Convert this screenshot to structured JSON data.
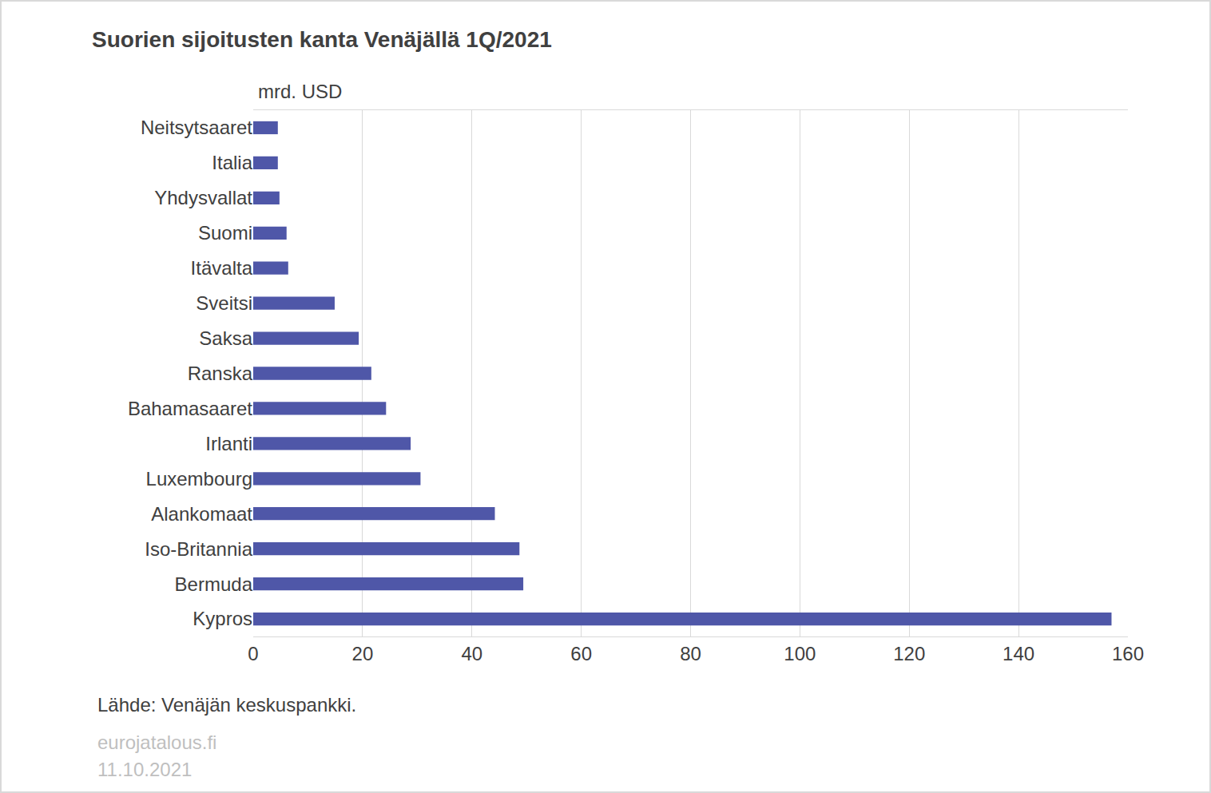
{
  "chart_data": {
    "type": "bar",
    "orientation": "horizontal",
    "title": "Suorien sijoitusten kanta Venäjällä 1Q/2021",
    "unit_label": "mrd. USD",
    "source": "Lähde: Venäjän keskuspankki.",
    "footer": [
      "eurojatalous.fi",
      "11.10.2021"
    ],
    "categories": [
      "Neitsytsaaret",
      "Italia",
      "Yhdysvallat",
      "Suomi",
      "Itävalta",
      "Sveitsi",
      "Saksa",
      "Ranska",
      "Bahamasaaret",
      "Irlanti",
      "Luxembourg",
      "Alankomaat",
      "Iso-Britannia",
      "Bermuda",
      "Kypros"
    ],
    "values": [
      4.5,
      4.5,
      4.8,
      6.1,
      6.4,
      14.9,
      19.3,
      21.6,
      24.3,
      28.8,
      30.6,
      44.2,
      48.7,
      49.4,
      157.0
    ],
    "color": "#4f57a8",
    "xlim": [
      0,
      160
    ],
    "xticks": [
      0,
      20,
      40,
      60,
      80,
      100,
      120,
      140,
      160
    ],
    "grid": true
  }
}
